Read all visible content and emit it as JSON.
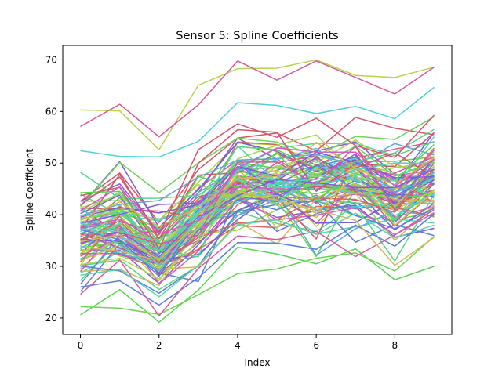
{
  "chart_data": {
    "type": "line",
    "title": "Sensor 5: Spline Coefficients",
    "xlabel": "Index",
    "ylabel": "Spline Coefficient",
    "x": [
      0,
      1,
      2,
      3,
      4,
      5,
      6,
      7,
      8,
      9
    ],
    "xlim": [
      -0.45,
      9.45
    ],
    "ylim": [
      16.8,
      72.8
    ],
    "xticks": [
      0,
      2,
      4,
      6,
      8
    ],
    "yticks": [
      20,
      30,
      40,
      50,
      60,
      70
    ],
    "grid": false,
    "legend": "none",
    "series_count": 100,
    "highlighted_series": [
      {
        "color": "#b5d44e",
        "values": [
          60.3,
          60.1,
          52.6,
          65.1,
          68.3,
          68.4,
          70.0,
          67.0,
          66.6,
          68.6
        ]
      },
      {
        "color": "#d45a9e",
        "values": [
          57.1,
          61.4,
          55.1,
          61.3,
          69.8,
          66.1,
          69.8,
          66.6,
          63.4,
          68.6
        ]
      },
      {
        "color": "#4fd0d6",
        "values": [
          52.4,
          51.3,
          51.2,
          54.2,
          61.7,
          61.2,
          59.6,
          61.0,
          58.6,
          64.7
        ]
      },
      {
        "color": "#d4556b",
        "values": [
          41.9,
          47.3,
          36.1,
          52.6,
          57.6,
          55.0,
          58.7,
          53.4,
          51.1,
          59.3
        ]
      },
      {
        "color": "#5ad456",
        "values": [
          20.6,
          25.5,
          19.2,
          25.4,
          33.7,
          32.4,
          30.5,
          33.4,
          27.4,
          30.0
        ]
      },
      {
        "color": "#6ad454",
        "values": [
          22.2,
          21.9,
          20.7,
          24.5,
          28.6,
          29.5,
          31.6,
          32.6,
          29.1,
          35.8
        ]
      },
      {
        "color": "#5a7fd4",
        "values": [
          26.0,
          27.2,
          22.5,
          27.8,
          34.6,
          34.5,
          33.3,
          38.0,
          33.9,
          40.2
        ]
      },
      {
        "color": "#d45a9e",
        "values": [
          24.6,
          31.2,
          20.4,
          29.6,
          35.9,
          35.2,
          36.8,
          31.9,
          36.1,
          41.0
        ]
      },
      {
        "color": "#5ad4b0",
        "values": [
          28.3,
          29.4,
          24.1,
          30.2,
          38.1,
          39.0,
          36.2,
          40.3,
          35.5,
          38.0
        ]
      },
      {
        "color": "#d4b85a",
        "values": [
          34.8,
          36.1,
          31.2,
          38.5,
          44.6,
          42.8,
          41.0,
          38.9,
          30.2,
          35.6
        ]
      }
    ],
    "bundle": {
      "count": 90,
      "base": [
        35.5,
        38.0,
        32.5,
        39.0,
        46.0,
        46.0,
        45.5,
        46.0,
        44.0,
        46.5
      ],
      "spread": 5.5,
      "noise": 2.8,
      "palette": [
        "#d4556b",
        "#5ad456",
        "#5a7fd4",
        "#d45a9e",
        "#4fd0d6",
        "#b5d44e",
        "#8a5ad4",
        "#d4b85a",
        "#5ad4b0",
        "#d45ac4",
        "#6fd45a",
        "#5aa8d4",
        "#d4675a",
        "#a3d45a",
        "#7a5ad4",
        "#5ad48a"
      ]
    }
  }
}
